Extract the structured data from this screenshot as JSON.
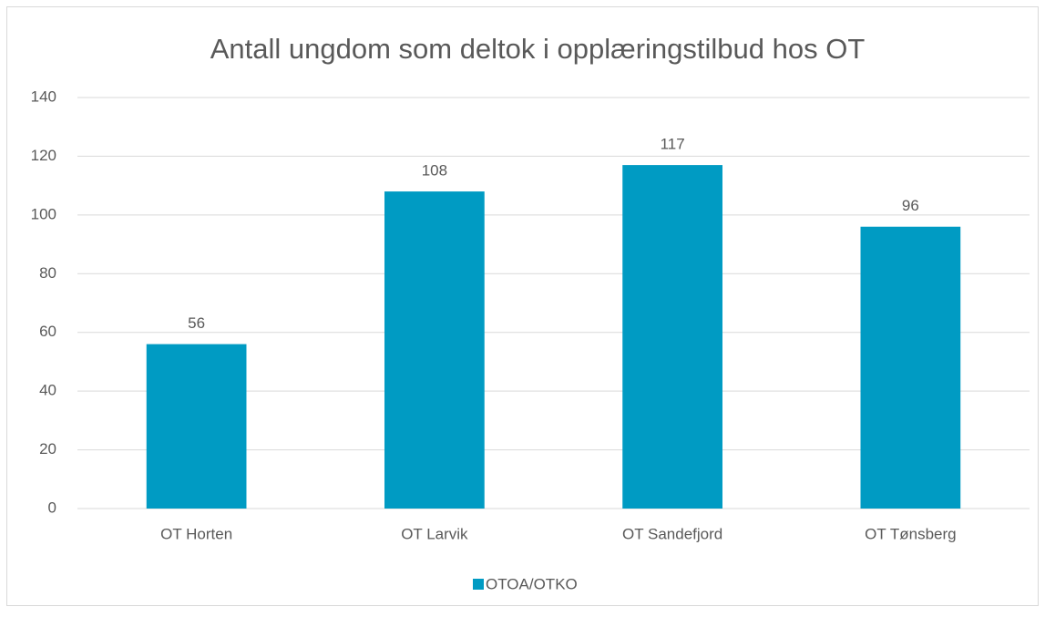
{
  "chart_data": {
    "type": "bar",
    "title": "Antall ungdom som deltok i opplæringstilbud hos OT",
    "categories": [
      "OT Horten",
      "OT Larvik",
      "OT Sandefjord",
      "OT Tønsberg"
    ],
    "series": [
      {
        "name": "OTOA/OTKO",
        "color": "#009bc3",
        "values": [
          56,
          108,
          117,
          96
        ]
      }
    ],
    "ylim": [
      0,
      140
    ],
    "yticks": [
      0,
      20,
      40,
      60,
      80,
      100,
      120,
      140
    ],
    "grid": true,
    "data_labels": true,
    "legend": "bottom"
  }
}
